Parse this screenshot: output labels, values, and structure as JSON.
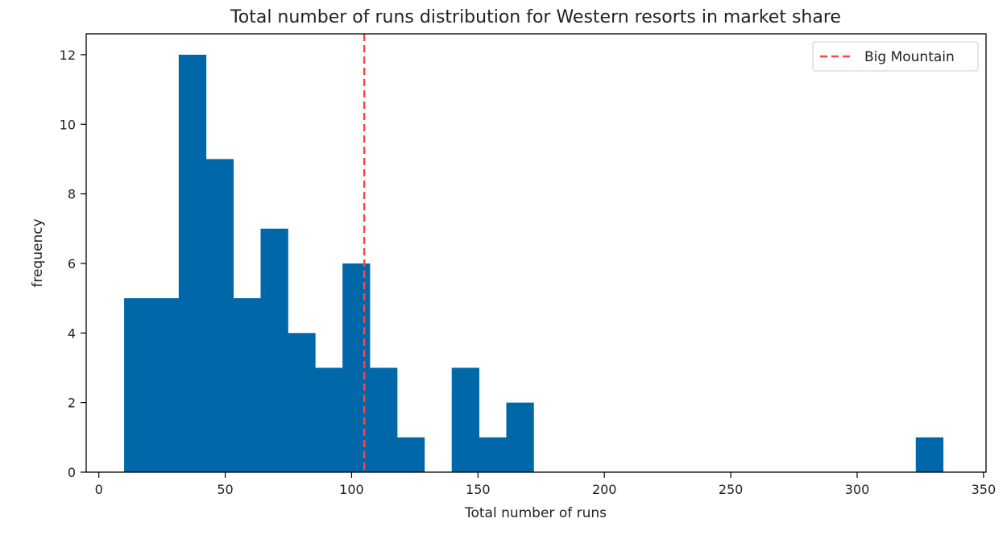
{
  "chart_data": {
    "type": "bar",
    "title": "Total number of runs distribution for Western resorts in market share",
    "xlabel": "Total number of runs",
    "ylabel": "frequency",
    "xlim": [
      -5,
      351
    ],
    "ylim": [
      0,
      12.6
    ],
    "xticks": [
      0,
      50,
      100,
      150,
      200,
      250,
      300,
      350
    ],
    "yticks": [
      0,
      2,
      4,
      6,
      8,
      10,
      12
    ],
    "bin_edges": [
      10.0,
      20.8,
      31.6,
      42.4,
      53.2,
      64.0,
      74.8,
      85.6,
      96.4,
      107.2,
      118.0,
      128.8,
      139.6,
      150.4,
      161.2,
      172.0,
      182.8,
      193.6,
      204.4,
      215.2,
      226.0,
      236.8,
      247.6,
      258.4,
      269.2,
      280.0,
      290.8,
      301.6,
      312.4,
      323.2,
      334.0
    ],
    "counts": [
      5,
      5,
      12,
      9,
      5,
      7,
      4,
      3,
      6,
      3,
      1,
      0,
      3,
      1,
      2,
      0,
      0,
      0,
      0,
      0,
      0,
      0,
      0,
      0,
      0,
      0,
      0,
      0,
      0,
      1
    ],
    "bar_color": "#0068a8",
    "reference_line": {
      "x": 105,
      "label": "Big Mountain",
      "color": "#ff4444",
      "style": "dashed"
    },
    "legend_position": "top-right",
    "grid": false
  }
}
